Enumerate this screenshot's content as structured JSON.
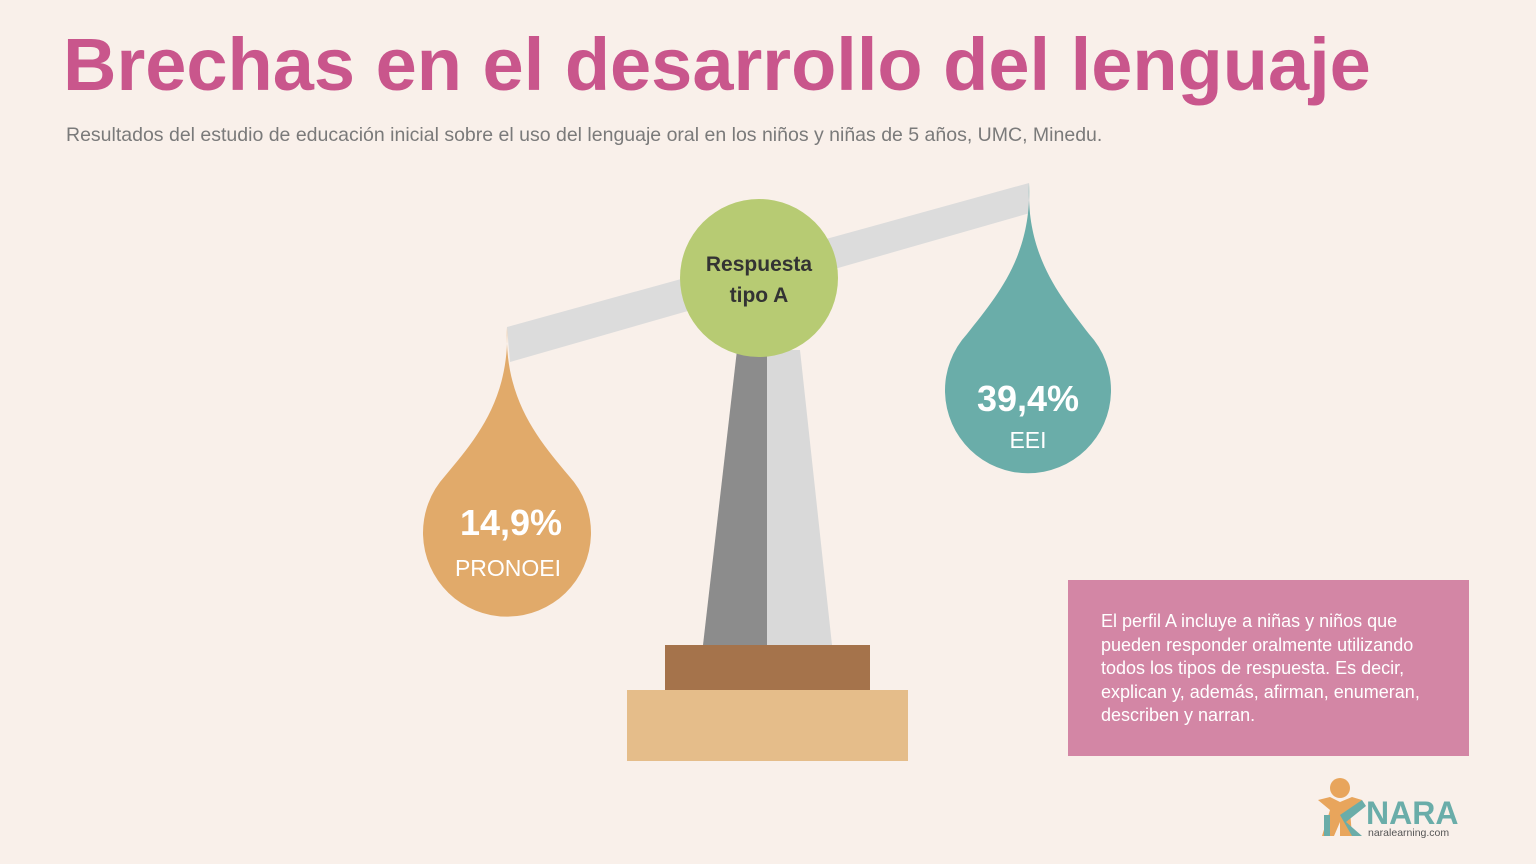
{
  "header": {
    "title": "Brechas en el desarrollo del lenguaje",
    "subtitle": "Resultados del estudio de educación inicial sobre el uso del lenguaje oral en los niños y niñas de 5 años, UMC, Minedu."
  },
  "scale": {
    "center_label": [
      "Respuesta",
      "tipo A"
    ],
    "left": {
      "value": "14,9%",
      "label": "PRONOEI"
    },
    "right": {
      "value": "39,4%",
      "label": "EEI"
    }
  },
  "note": {
    "text": "El perfil A incluye a niñas y niños que pueden responder oralmente utilizando todos los tipos de respuesta. Es decir, explican y, además, afirman, enumeran, describen y narran."
  },
  "logo": {
    "name": "NARA",
    "url": "naralearning.com"
  }
}
